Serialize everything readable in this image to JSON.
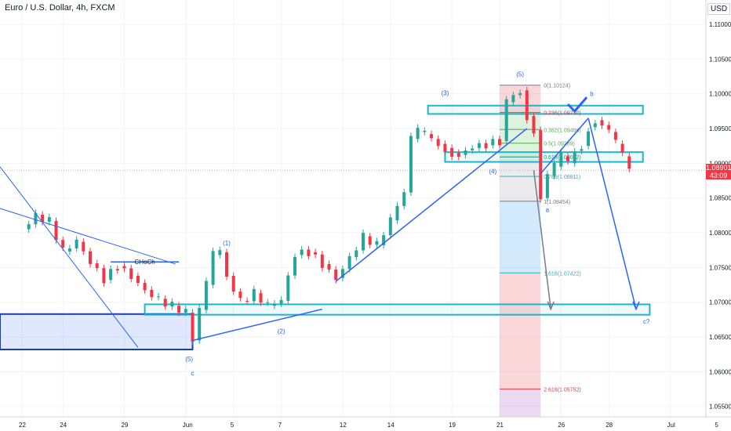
{
  "header": {
    "symbol": "Euro / U.S. Dollar, 4h, FXCM",
    "currency": "USD"
  },
  "price_tag": {
    "price": "1.08901",
    "countdown": "43:09"
  },
  "colors": {
    "up": "#26a69a",
    "down": "#f23645",
    "zone": "#22b5c6",
    "wave": "#2962ff"
  },
  "chart_data": {
    "type": "line",
    "ylim": [
      1.0535,
      1.1135
    ],
    "y_ticks": [
      "1.11000",
      "1.10500",
      "1.10000",
      "1.09500",
      "1.09000",
      "1.08500",
      "1.08000",
      "1.07500",
      "1.07000",
      "1.06500",
      "1.06000",
      "1.05500"
    ],
    "y_tick_values": [
      1.11,
      1.105,
      1.1,
      1.095,
      1.09,
      1.085,
      1.08,
      1.075,
      1.07,
      1.065,
      1.06,
      1.055
    ],
    "x_ticks": [
      "22",
      "24",
      "29",
      "Jun",
      "5",
      "7",
      "12",
      "14",
      "19",
      "21",
      "26",
      "28",
      "Jul",
      "5"
    ],
    "x_tick_index": [
      0,
      12,
      30,
      48,
      62,
      76,
      94,
      108,
      126,
      140,
      158,
      172,
      190,
      204
    ],
    "series": [
      {
        "x": [
          0,
          4,
          8,
          12,
          16,
          20,
          24,
          28,
          32,
          36,
          40,
          44,
          48,
          50,
          52,
          54,
          56,
          58,
          60,
          64,
          68,
          72,
          76,
          80,
          84,
          88,
          92,
          96,
          100,
          104,
          108,
          112,
          114,
          116,
          118,
          120,
          122,
          124,
          126,
          128,
          132,
          136,
          140,
          142,
          144,
          146,
          148,
          150,
          152,
          154,
          156,
          158,
          160,
          162,
          164,
          166,
          168,
          170,
          172,
          174,
          176,
          178
        ],
        "close": [
          1.0805,
          1.0826,
          1.0817,
          1.0773,
          1.0787,
          1.0756,
          1.0732,
          1.0752,
          1.0738,
          1.0718,
          1.0705,
          1.0695,
          1.0685,
          1.0645,
          1.0689,
          1.0725,
          1.0768,
          1.0772,
          1.0738,
          1.0702,
          1.0713,
          1.0695,
          1.0702,
          1.0768,
          1.0772,
          1.0755,
          1.0735,
          1.0765,
          1.0795,
          1.0782,
          1.0818,
          1.0858,
          1.0935,
          1.0945,
          1.0942,
          1.0935,
          1.0928,
          1.0922,
          1.0915,
          1.0912,
          1.0922,
          1.0926,
          1.0932,
          1.0988,
          1.0998,
          1.1005,
          1.0968,
          1.0948,
          1.085,
          1.0882,
          1.0895,
          1.091,
          1.09,
          1.0918,
          1.0925,
          1.0952,
          1.0962,
          1.0955,
          1.0945,
          1.0928,
          1.091,
          1.089
        ]
      }
    ],
    "annotations": {
      "fib_levels": [
        {
          "ratio": "0(1.10124)",
          "value": 1.10124,
          "color": "#787b86"
        },
        {
          "ratio": "0.236(1.09730)",
          "value": 1.0973,
          "color": "#f23645"
        },
        {
          "ratio": "0.382(1.09486)",
          "value": 1.09486,
          "color": "#4caf50"
        },
        {
          "ratio": "0.5(1.09289)",
          "value": 1.09289,
          "color": "#4caf50"
        },
        {
          "ratio": "0.618(1.09092)",
          "value": 1.09092,
          "color": "#089981"
        },
        {
          "ratio": "0.786(1.08811)",
          "value": 1.08811,
          "color": "#22b5c6"
        },
        {
          "ratio": "1(1.08454)",
          "value": 1.08454,
          "color": "#787b86"
        },
        {
          "ratio": "1.618(1.07422)",
          "value": 1.07422,
          "color": "#22b5c6"
        },
        {
          "ratio": "2.618(1.05752)",
          "value": 1.05752,
          "color": "#f23645"
        }
      ],
      "wave_labels": [
        "(1)",
        "(2)",
        "(3)",
        "(4)",
        "(5)",
        "(5)",
        "a",
        "b",
        "c",
        "c?",
        "CHoCh"
      ]
    }
  }
}
